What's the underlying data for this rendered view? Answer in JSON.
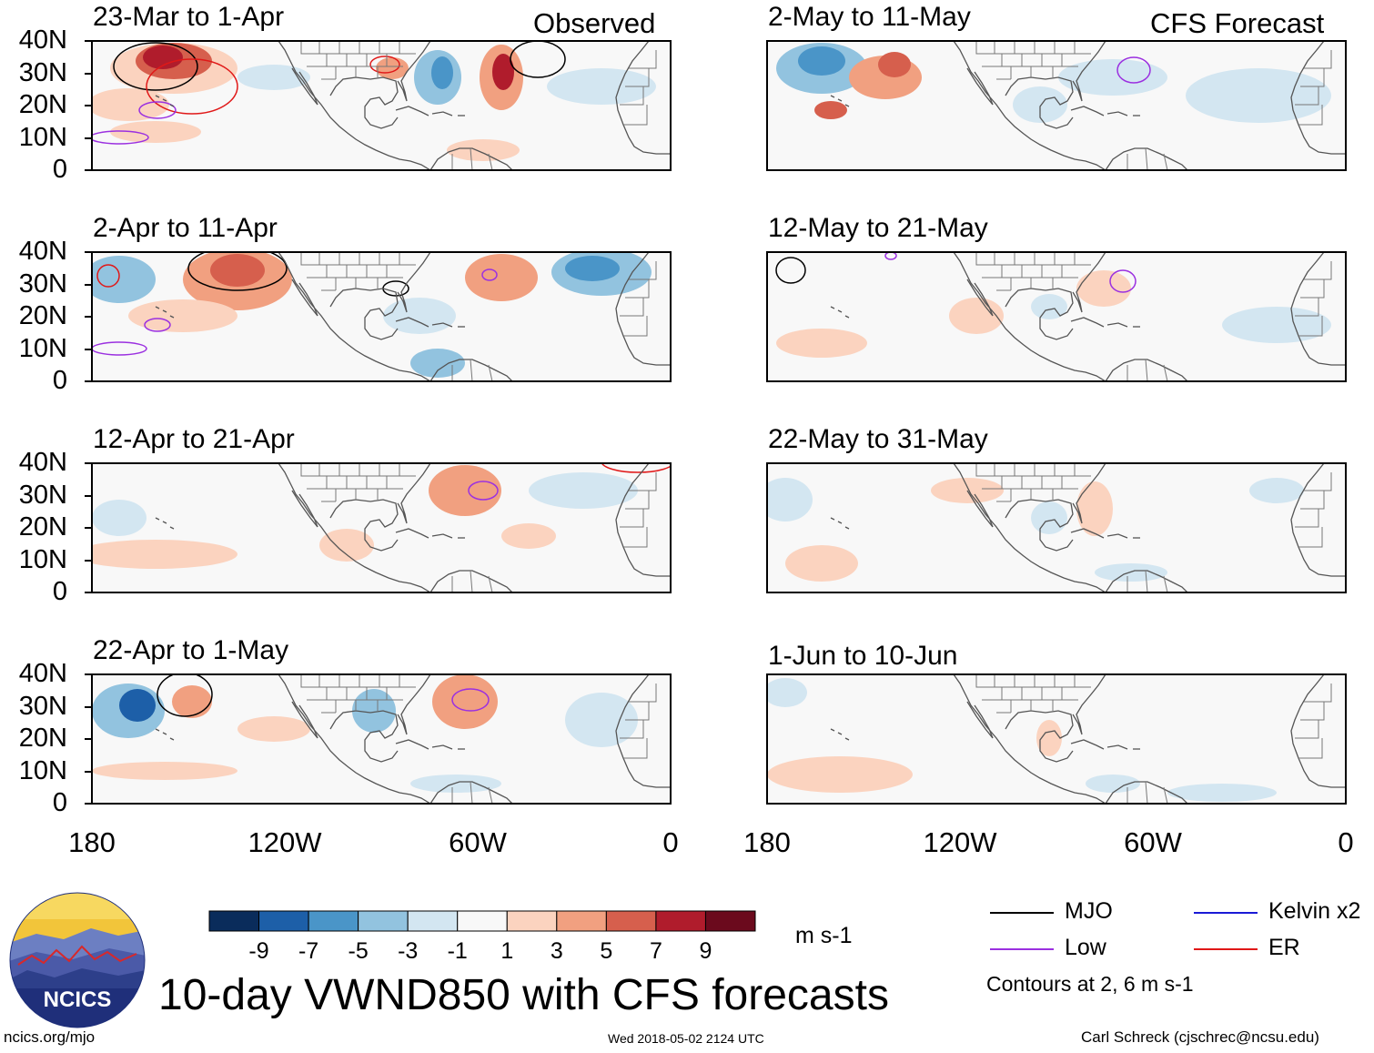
{
  "header": {
    "left_label": "Observed",
    "right_label": "CFS Forecast"
  },
  "panels": {
    "left": [
      {
        "title": "23-Mar to 1-Apr"
      },
      {
        "title": "2-Apr to 11-Apr"
      },
      {
        "title": "12-Apr to 21-Apr"
      },
      {
        "title": "22-Apr to 1-May"
      }
    ],
    "right": [
      {
        "title": "2-May to 11-May"
      },
      {
        "title": "12-May to 21-May"
      },
      {
        "title": "22-May to 31-May"
      },
      {
        "title": "1-Jun to 10-Jun"
      }
    ]
  },
  "axes": {
    "y_ticks": [
      "40N",
      "30N",
      "20N",
      "10N",
      "0"
    ],
    "x_ticks": [
      "180",
      "120W",
      "60W",
      "0"
    ]
  },
  "colorbar": {
    "labels": [
      "-9",
      "-7",
      "-5",
      "-3",
      "-1",
      "1",
      "3",
      "5",
      "7",
      "9"
    ],
    "unit": "m s-1",
    "colors": [
      "#0a2c5b",
      "#1d5fa8",
      "#4a95c8",
      "#92c3df",
      "#d3e6f1",
      "#f8f8f8",
      "#fbd3bf",
      "#f1a080",
      "#d65f4d",
      "#b01c2c",
      "#6b0a1d"
    ]
  },
  "legend": {
    "items": [
      {
        "label": "MJO",
        "color": "#000000"
      },
      {
        "label": "Kelvin x2",
        "color": "#1a1ad6"
      },
      {
        "label": "Low",
        "color": "#9b30e0"
      },
      {
        "label": "ER",
        "color": "#e01818"
      }
    ],
    "contour_note": "Contours at 2, 6 m s-1"
  },
  "title": "10-day VWND850 with CFS forecasts",
  "logo": {
    "text": "NCICS"
  },
  "footer": {
    "left": "ncics.org/mjo",
    "center": "Wed 2018-05-02 2124 UTC",
    "right": "Carl Schreck (cjschrec@ncsu.edu)"
  }
}
